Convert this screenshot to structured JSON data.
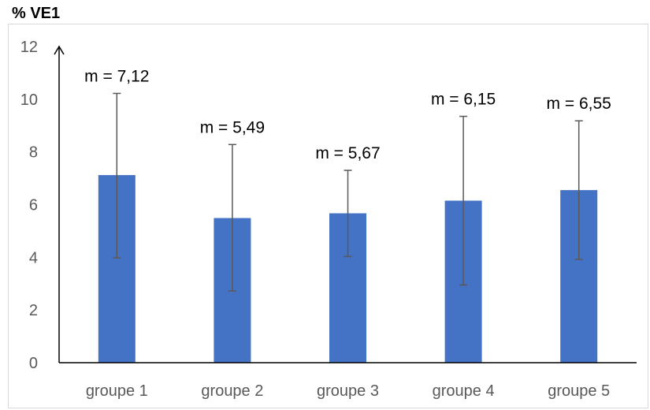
{
  "chart_data": {
    "type": "bar",
    "title": "% VE1",
    "categories": [
      "groupe 1",
      "groupe 2",
      "groupe 3",
      "groupe 4",
      "groupe 5"
    ],
    "values": [
      7.12,
      5.49,
      5.67,
      6.15,
      6.55
    ],
    "error_low": [
      3.98,
      2.72,
      4.03,
      2.95,
      3.92
    ],
    "error_high": [
      10.22,
      8.28,
      7.3,
      9.35,
      9.18
    ],
    "data_labels": [
      "m = 7,12",
      "m = 5,49",
      "m = 5,67",
      "m = 6,15",
      "m = 6,55"
    ],
    "yticks": [
      "0",
      "2",
      "4",
      "6",
      "8",
      "10",
      "12"
    ],
    "ylim": [
      0,
      12
    ],
    "bar_color": "#4472c4",
    "error_color": "#595959",
    "grid": false
  }
}
